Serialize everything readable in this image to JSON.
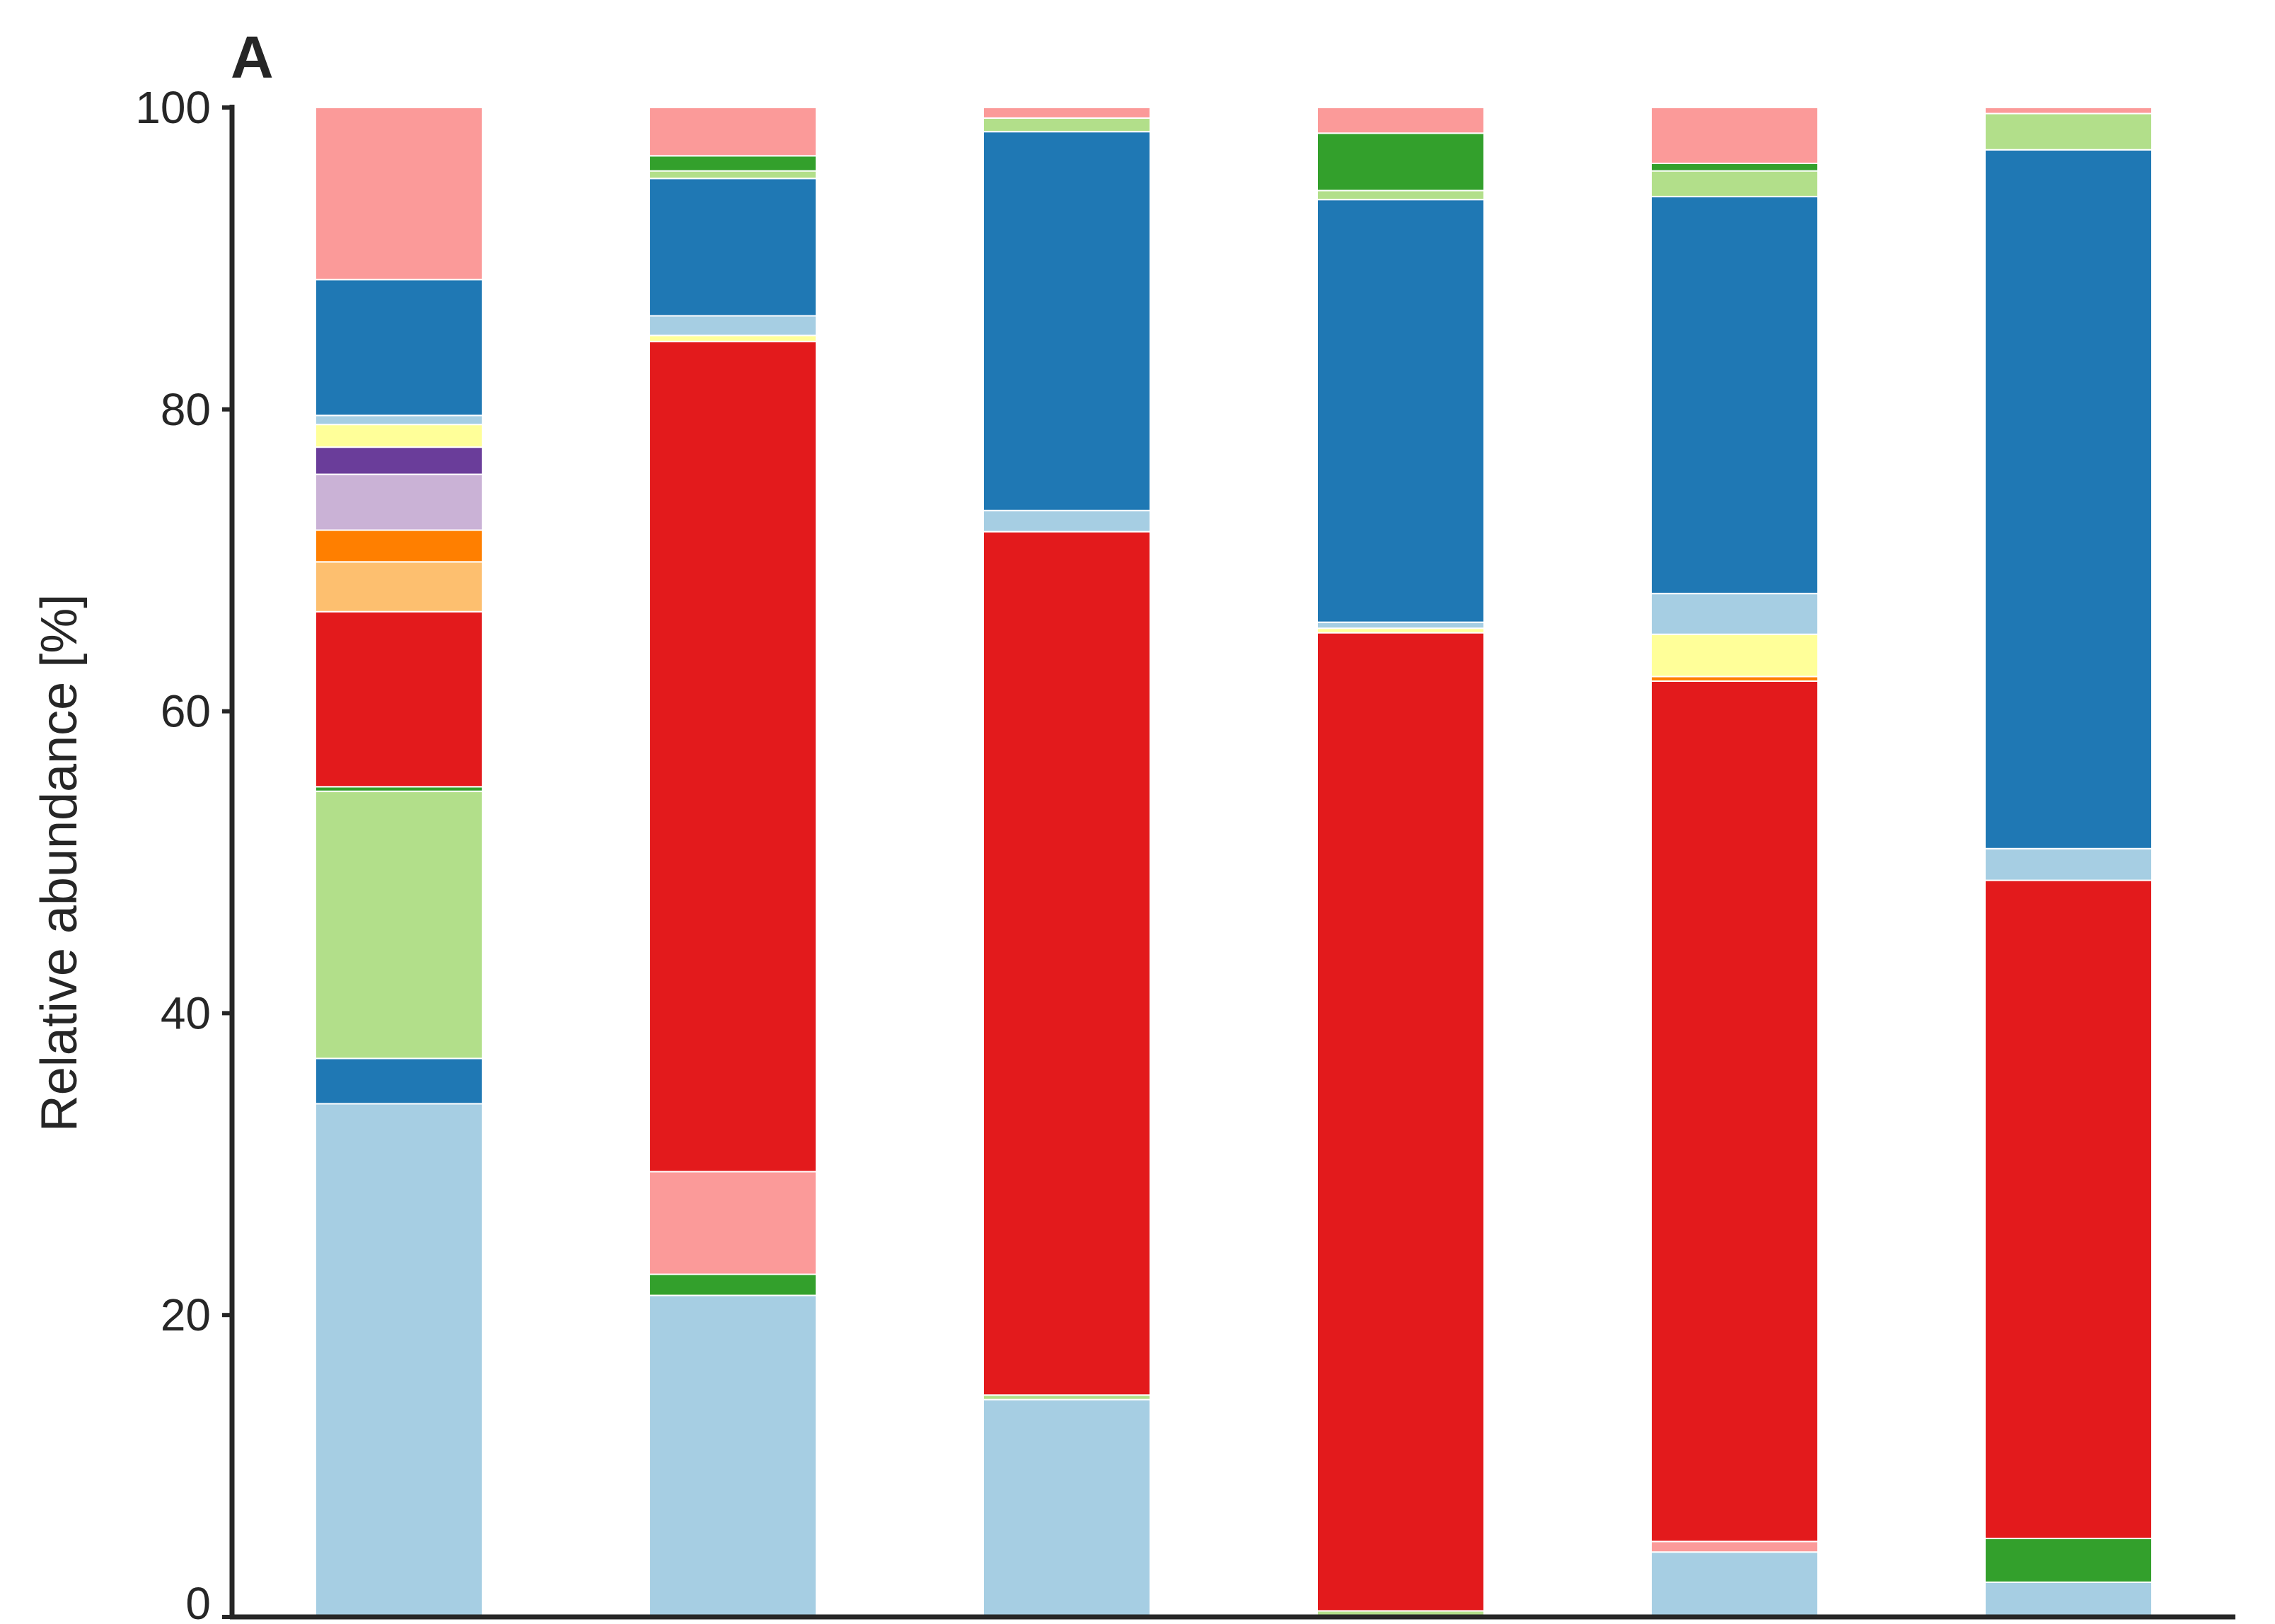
{
  "panel_label": "A",
  "chart_data": {
    "type": "bar",
    "stacked": true,
    "title": "",
    "xlabel": "",
    "ylabel": "Relative abundance [%]",
    "ylim": [
      0,
      100
    ],
    "yticks": [
      0,
      20,
      40,
      60,
      80,
      100
    ],
    "grid": false,
    "legend": "none",
    "bars": [
      {
        "segments": [
          {
            "value": 34.0,
            "color": "#a6cee3"
          },
          {
            "value": 3.0,
            "color": "#1f78b4"
          },
          {
            "value": 17.7,
            "color": "#b2df8a"
          },
          {
            "value": 0.3,
            "color": "#33a02c"
          },
          {
            "value": 11.6,
            "color": "#e31a1c"
          },
          {
            "value": 3.3,
            "color": "#fdbf6f"
          },
          {
            "value": 2.1,
            "color": "#ff7f00"
          },
          {
            "value": 3.7,
            "color": "#cab2d6"
          },
          {
            "value": 1.8,
            "color": "#6a3d9a"
          },
          {
            "value": 1.5,
            "color": "#ffff99"
          },
          {
            "value": 0.6,
            "color": "#a6cee3"
          },
          {
            "value": 9.0,
            "color": "#1f78b4"
          },
          {
            "value": 11.4,
            "color": "#fb9a99"
          }
        ]
      },
      {
        "segments": [
          {
            "value": 21.3,
            "color": "#a6cee3"
          },
          {
            "value": 1.4,
            "color": "#33a02c"
          },
          {
            "value": 6.8,
            "color": "#fb9a99"
          },
          {
            "value": 55.0,
            "color": "#e31a1c"
          },
          {
            "value": 0.4,
            "color": "#ffff99"
          },
          {
            "value": 1.3,
            "color": "#a6cee3"
          },
          {
            "value": 9.1,
            "color": "#1f78b4"
          },
          {
            "value": 0.5,
            "color": "#b2df8a"
          },
          {
            "value": 1.0,
            "color": "#33a02c"
          },
          {
            "value": 3.2,
            "color": "#fb9a99"
          }
        ]
      },
      {
        "segments": [
          {
            "value": 14.4,
            "color": "#a6cee3"
          },
          {
            "value": 0.3,
            "color": "#b2df8a"
          },
          {
            "value": 57.2,
            "color": "#e31a1c"
          },
          {
            "value": 1.4,
            "color": "#a6cee3"
          },
          {
            "value": 25.1,
            "color": "#1f78b4"
          },
          {
            "value": 0.9,
            "color": "#b2df8a"
          },
          {
            "value": 0.7,
            "color": "#fb9a99"
          }
        ]
      },
      {
        "segments": [
          {
            "value": 0.4,
            "color": "#b2df8a"
          },
          {
            "value": 64.8,
            "color": "#e31a1c"
          },
          {
            "value": 0.3,
            "color": "#ffff99"
          },
          {
            "value": 0.4,
            "color": "#a6cee3"
          },
          {
            "value": 28.0,
            "color": "#1f78b4"
          },
          {
            "value": 0.6,
            "color": "#b2df8a"
          },
          {
            "value": 3.8,
            "color": "#33a02c"
          },
          {
            "value": 1.7,
            "color": "#fb9a99"
          }
        ]
      },
      {
        "segments": [
          {
            "value": 4.3,
            "color": "#a6cee3"
          },
          {
            "value": 0.7,
            "color": "#fb9a99"
          },
          {
            "value": 57.0,
            "color": "#e31a1c"
          },
          {
            "value": 0.3,
            "color": "#ff7f00"
          },
          {
            "value": 2.8,
            "color": "#ffff99"
          },
          {
            "value": 2.7,
            "color": "#a6cee3"
          },
          {
            "value": 26.3,
            "color": "#1f78b4"
          },
          {
            "value": 1.7,
            "color": "#b2df8a"
          },
          {
            "value": 0.5,
            "color": "#33a02c"
          },
          {
            "value": 3.7,
            "color": "#fb9a99"
          }
        ]
      },
      {
        "segments": [
          {
            "value": 2.3,
            "color": "#a6cee3"
          },
          {
            "value": 2.9,
            "color": "#33a02c"
          },
          {
            "value": 43.6,
            "color": "#e31a1c"
          },
          {
            "value": 2.1,
            "color": "#a6cee3"
          },
          {
            "value": 46.3,
            "color": "#1f78b4"
          },
          {
            "value": 2.4,
            "color": "#b2df8a"
          },
          {
            "value": 0.4,
            "color": "#fb9a99"
          }
        ]
      }
    ]
  }
}
